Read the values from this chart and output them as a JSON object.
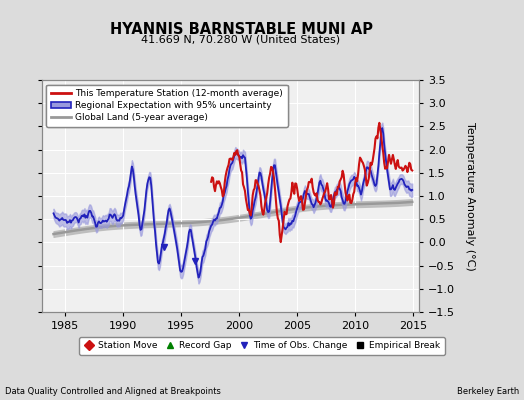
{
  "title": "HYANNIS BARNSTABLE MUNI AP",
  "subtitle": "41.669 N, 70.280 W (United States)",
  "xlabel_left": "Data Quality Controlled and Aligned at Breakpoints",
  "xlabel_right": "Berkeley Earth",
  "ylabel": "Temperature Anomaly (°C)",
  "xlim": [
    1983.0,
    2015.5
  ],
  "ylim": [
    -1.5,
    3.5
  ],
  "yticks": [
    -1.5,
    -1.0,
    -0.5,
    0.0,
    0.5,
    1.0,
    1.5,
    2.0,
    2.5,
    3.0,
    3.5
  ],
  "xticks": [
    1985,
    1990,
    1995,
    2000,
    2005,
    2010,
    2015
  ],
  "bg_color": "#dcdcdc",
  "plot_bg_color": "#f0f0f0",
  "grid_color": "#ffffff",
  "red_color": "#cc1111",
  "blue_color": "#2222bb",
  "blue_fill_color": "#9999dd",
  "gray_color": "#999999",
  "gray_fill_color": "#bbbbbb"
}
